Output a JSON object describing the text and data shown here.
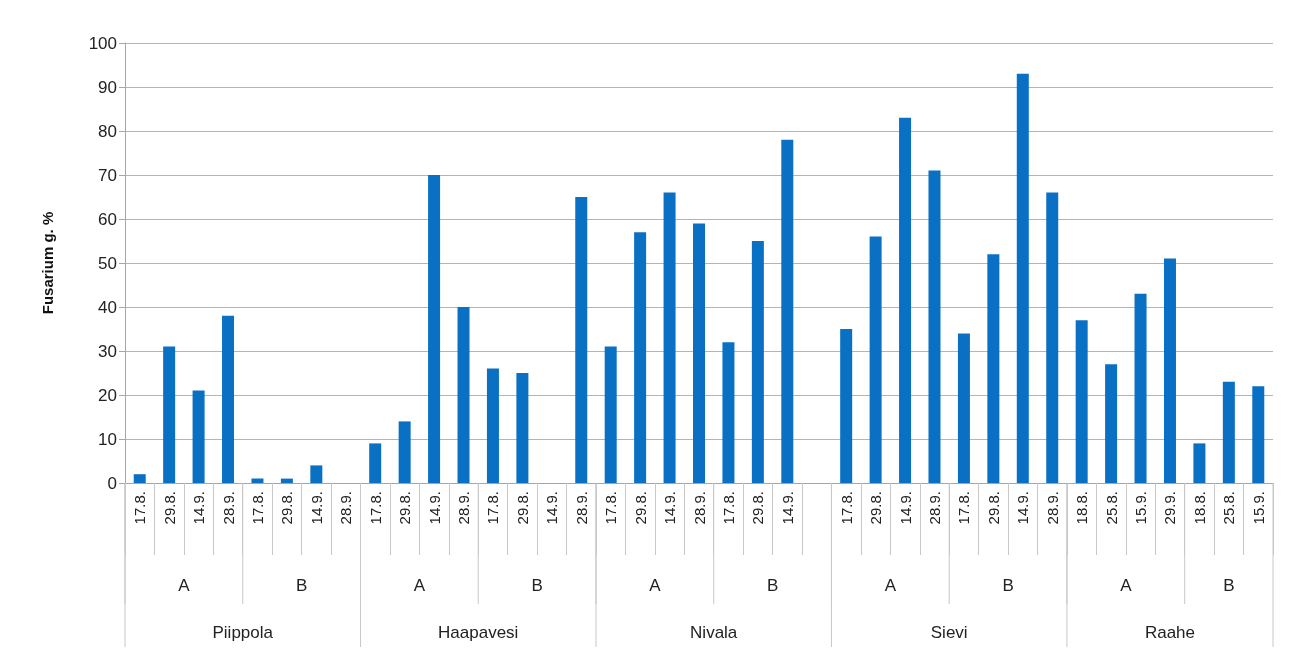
{
  "chart_data": {
    "type": "bar",
    "ylabel": "Fusarium g. %",
    "categories": [
      "17.8.",
      "29.8.",
      "14.9.",
      "28.9.",
      "17.8.",
      "29.8.",
      "14.9.",
      "28.9.",
      "17.8.",
      "29.8.",
      "14.9.",
      "28.9.",
      "17.8.",
      "29.8.",
      "14.9.",
      "28.9.",
      "17.8.",
      "29.8.",
      "14.9.",
      "28.9.",
      "17.8.",
      "29.8.",
      "14.9.",
      null,
      "17.8.",
      "29.8.",
      "14.9.",
      "28.9.",
      "17.8.",
      "29.8.",
      "14.9.",
      "28.9.",
      "18.8.",
      "25.8.",
      "15.9.",
      "29.9.",
      "18.8.",
      "25.8.",
      "15.9."
    ],
    "values": [
      2,
      31,
      21,
      38,
      1,
      1,
      4,
      null,
      9,
      14,
      70,
      40,
      26,
      25,
      null,
      65,
      31,
      57,
      66,
      59,
      32,
      55,
      78,
      null,
      35,
      56,
      83,
      71,
      34,
      52,
      93,
      66,
      37,
      27,
      43,
      51,
      9,
      23,
      22
    ],
    "color": "#0a70c4",
    "annotations": [
      "A",
      "B",
      "Piippola",
      "A",
      "B",
      "Haapavesi",
      "A",
      "B",
      "Nivala",
      "A",
      "B",
      "Sievi",
      "A",
      "B",
      "Raahe"
    ],
    "ylim": [
      0,
      100
    ],
    "yticks": [
      0,
      10,
      20,
      30,
      40,
      50,
      60,
      70,
      80,
      90,
      100
    ],
    "grid": "y"
  }
}
